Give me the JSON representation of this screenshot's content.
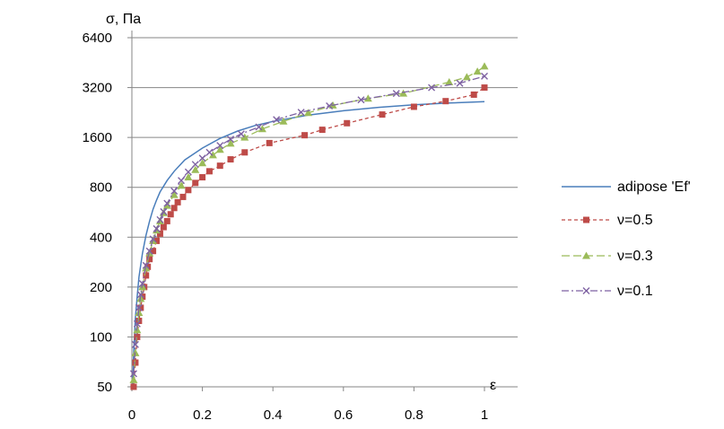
{
  "chart_data": {
    "type": "line",
    "title": "",
    "xlabel": "ε",
    "ylabel": "σ, Па",
    "xlim": [
      0,
      1.1
    ],
    "ylim": [
      50,
      6400
    ],
    "yscale": "log2",
    "grid": {
      "x": false,
      "y": true
    },
    "legend_position": "right",
    "xticks": [
      0,
      0.2,
      0.4,
      0.6,
      0.8,
      1
    ],
    "xtick_labels": [
      "0",
      "0.2",
      "0.4",
      "0.6",
      "0.8",
      "1"
    ],
    "yticks": [
      50,
      100,
      200,
      400,
      800,
      1600,
      3200,
      6400
    ],
    "ytick_labels": [
      "50",
      "100",
      "200",
      "400",
      "800",
      "1600",
      "3200",
      "6400"
    ],
    "series": [
      {
        "name": "adipose 'Ef'",
        "color": "#4a7ebb",
        "style": "solid",
        "marker": "none",
        "x": [
          0.002,
          0.005,
          0.01,
          0.015,
          0.02,
          0.03,
          0.04,
          0.05,
          0.06,
          0.07,
          0.08,
          0.1,
          0.12,
          0.15,
          0.2,
          0.25,
          0.3,
          0.35,
          0.4,
          0.5,
          0.6,
          0.7,
          0.8,
          0.9,
          1.0
        ],
        "y": [
          50,
          80,
          130,
          175,
          230,
          320,
          410,
          500,
          590,
          670,
          750,
          880,
          1000,
          1170,
          1380,
          1580,
          1750,
          1890,
          2000,
          2180,
          2320,
          2430,
          2520,
          2580,
          2630
        ]
      },
      {
        "name": "ν=0.5",
        "color": "#be4b48",
        "style": "dashed",
        "marker": "square",
        "x": [
          0.005,
          0.01,
          0.015,
          0.02,
          0.025,
          0.03,
          0.035,
          0.04,
          0.045,
          0.05,
          0.06,
          0.07,
          0.08,
          0.09,
          0.1,
          0.11,
          0.12,
          0.13,
          0.145,
          0.16,
          0.18,
          0.2,
          0.22,
          0.25,
          0.28,
          0.32,
          0.39,
          0.49,
          0.54,
          0.61,
          0.71,
          0.8,
          0.89,
          0.97,
          1.0
        ],
        "y": [
          50,
          70,
          100,
          125,
          150,
          175,
          200,
          235,
          265,
          295,
          330,
          380,
          420,
          460,
          500,
          550,
          600,
          650,
          700,
          770,
          850,
          920,
          1000,
          1080,
          1180,
          1300,
          1480,
          1650,
          1780,
          1950,
          2200,
          2450,
          2650,
          2900,
          3200
        ]
      },
      {
        "name": "ν=0.3",
        "color": "#9bbb59",
        "style": "longdash",
        "marker": "triangle",
        "x": [
          0.005,
          0.01,
          0.015,
          0.02,
          0.025,
          0.03,
          0.04,
          0.05,
          0.06,
          0.07,
          0.08,
          0.09,
          0.1,
          0.12,
          0.14,
          0.16,
          0.18,
          0.2,
          0.23,
          0.25,
          0.28,
          0.32,
          0.37,
          0.43,
          0.5,
          0.57,
          0.67,
          0.77,
          0.9,
          0.95,
          0.98,
          1.0
        ],
        "y": [
          55,
          80,
          110,
          140,
          170,
          200,
          260,
          320,
          380,
          440,
          500,
          560,
          620,
          720,
          820,
          920,
          1020,
          1120,
          1250,
          1350,
          1470,
          1600,
          1800,
          2000,
          2250,
          2500,
          2750,
          2950,
          3450,
          3700,
          4000,
          4300
        ]
      },
      {
        "name": "ν=0.1",
        "color": "#7e62a2",
        "style": "dashdot",
        "marker": "x",
        "x": [
          0.005,
          0.01,
          0.015,
          0.02,
          0.025,
          0.03,
          0.04,
          0.05,
          0.06,
          0.07,
          0.08,
          0.09,
          0.1,
          0.12,
          0.14,
          0.16,
          0.18,
          0.2,
          0.22,
          0.25,
          0.28,
          0.31,
          0.36,
          0.41,
          0.48,
          0.56,
          0.65,
          0.75,
          0.85,
          0.93,
          1.0
        ],
        "y": [
          60,
          90,
          120,
          150,
          180,
          210,
          270,
          330,
          390,
          450,
          510,
          570,
          640,
          760,
          880,
          990,
          1100,
          1200,
          1300,
          1430,
          1560,
          1680,
          1850,
          2050,
          2270,
          2480,
          2700,
          2950,
          3200,
          3400,
          3750
        ]
      }
    ]
  }
}
